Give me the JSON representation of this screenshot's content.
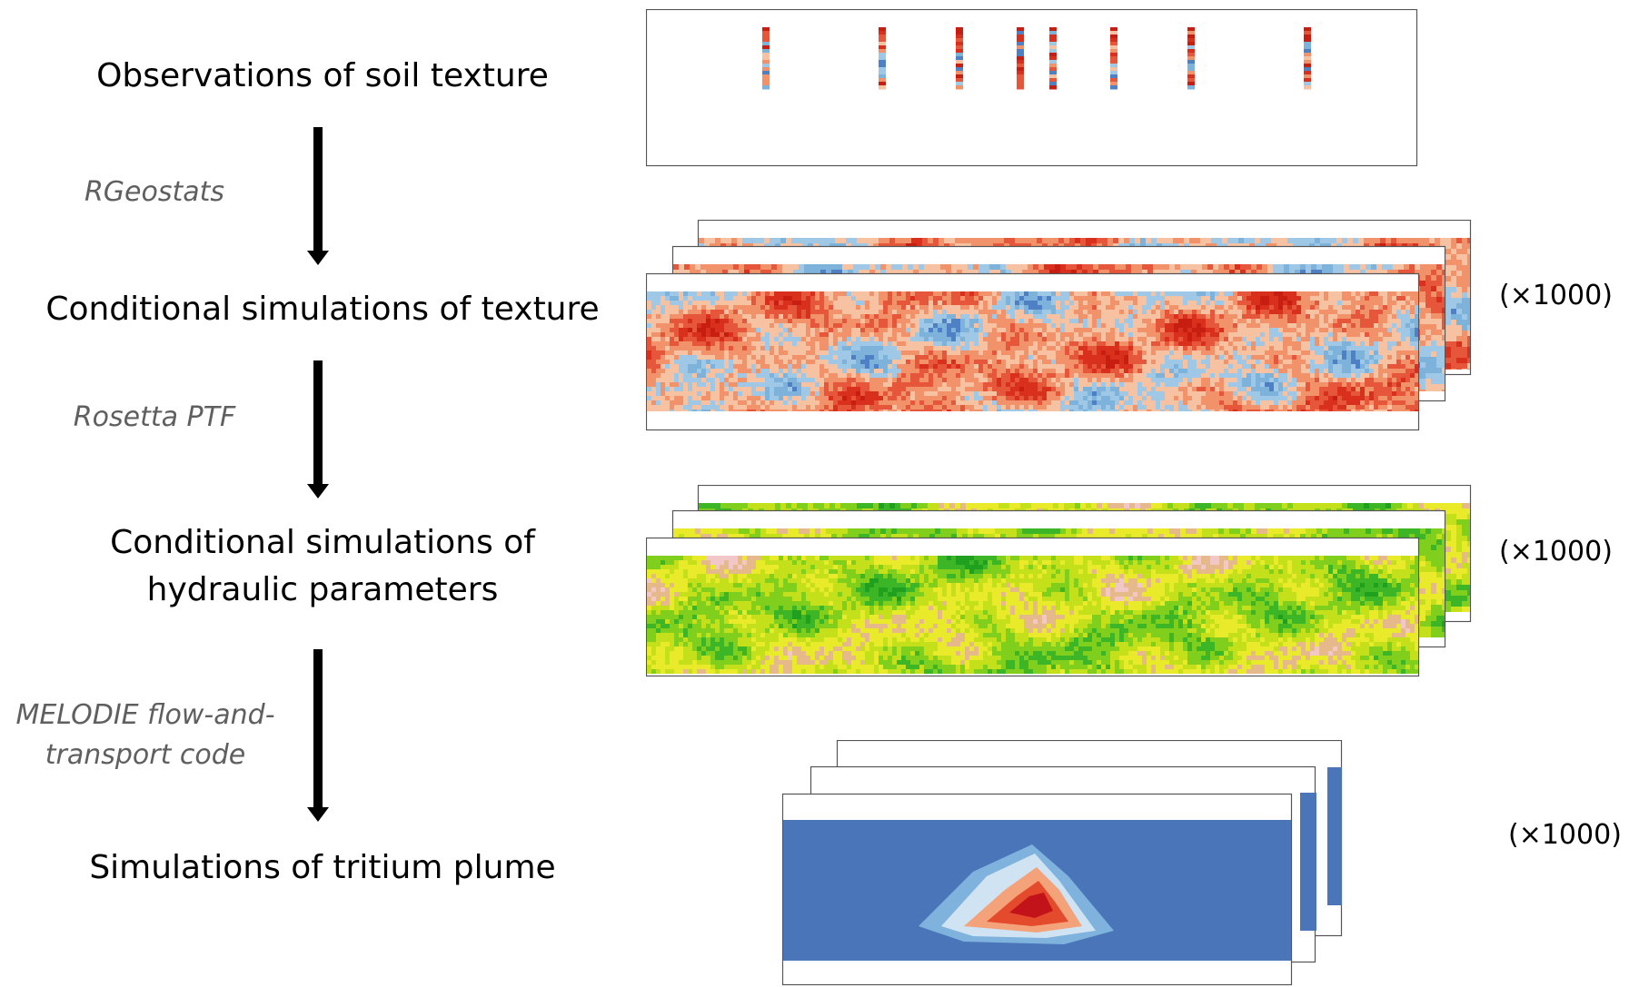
{
  "steps": {
    "observations": "Observations of soil texture",
    "texture": "Conditional simulations of texture",
    "hydraulic_line1": "Conditional simulations of",
    "hydraulic_line2": "hydraulic parameters",
    "plume": "Simulations of tritium plume"
  },
  "tools": {
    "rgeostats": "RGeostats",
    "rosetta": "Rosetta PTF",
    "melodie_line1": "MELODIE flow-and-",
    "melodie_line2": "transport code"
  },
  "multipliers": {
    "texture": "(×1000)",
    "hydraulic": "(×1000)",
    "plume": "(×1000)"
  },
  "colors": {
    "texture_palette": [
      "#c81e12",
      "#d9301e",
      "#e6563a",
      "#f2926a",
      "#f6c2a2",
      "#9ec8e6",
      "#7db2da",
      "#4f7fc4"
    ],
    "hydraulic_palette": [
      "#1fa01f",
      "#3cb526",
      "#7fcf1c",
      "#c4e01a",
      "#e9ea2a",
      "#e6b98a",
      "#f1c7c7"
    ],
    "plume_background": "#4a75b8",
    "plume_core": "#c2131a"
  }
}
